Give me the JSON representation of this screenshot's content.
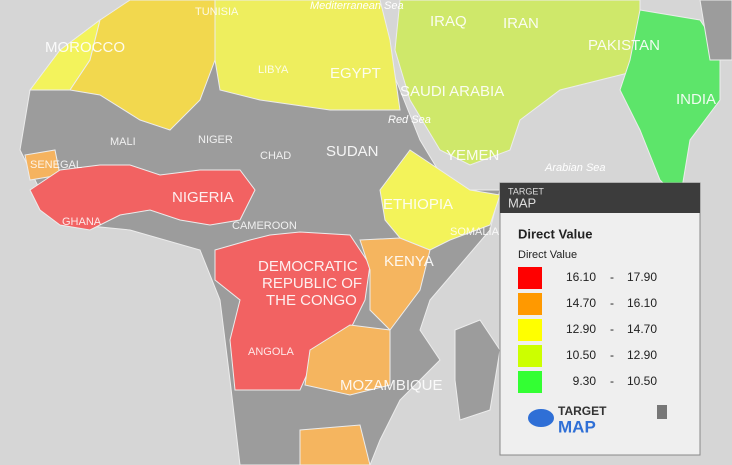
{
  "map": {
    "labels": {
      "morocco": "MOROCCO",
      "tunisia": "TUNISIA",
      "mediterranean": "Mediterranean Sea",
      "iraq": "IRAQ",
      "iran": "IRAN",
      "pakistan": "PAKISTAN",
      "libya": "LIBYA",
      "egypt": "EGYPT",
      "saudi": "SAUDI ARABIA",
      "india": "INDIA",
      "mali": "MALI",
      "niger": "NIGER",
      "chad": "CHAD",
      "sudan": "SUDAN",
      "red_sea": "Red Sea",
      "yemen": "YEMEN",
      "arabian_sea": "Arabian Sea",
      "nigeria": "NIGERIA",
      "ethiopia": "ETHIOPIA",
      "somalia": "SOMALIA",
      "cameroon": "CAMEROON",
      "kenya": "KENYA",
      "drc": [
        "DEMOCRATIC",
        "REPUBLIC OF",
        "THE CONGO"
      ],
      "angola": "ANGOLA",
      "mozambique": "MOZAMBIQUE",
      "ghana": "GHANA",
      "senegal": "SENEGAL"
    }
  },
  "legend": {
    "brand": [
      "TARGET",
      "MAP"
    ],
    "title": "Direct Value",
    "subtitle": "Direct Value",
    "separator": "-",
    "classes": [
      {
        "from": "16.10",
        "to": "17.90",
        "color": "#ff0000"
      },
      {
        "from": "14.70",
        "to": "16.10",
        "color": "#ff9900"
      },
      {
        "from": "12.90",
        "to": "14.70",
        "color": "#ffff00"
      },
      {
        "from": "10.50",
        "to": "12.90",
        "color": "#ccff00"
      },
      {
        "from": "9.30",
        "to": "10.50",
        "color": "#33ff33"
      }
    ],
    "logo": [
      "TARGET",
      "MAP"
    ]
  }
}
